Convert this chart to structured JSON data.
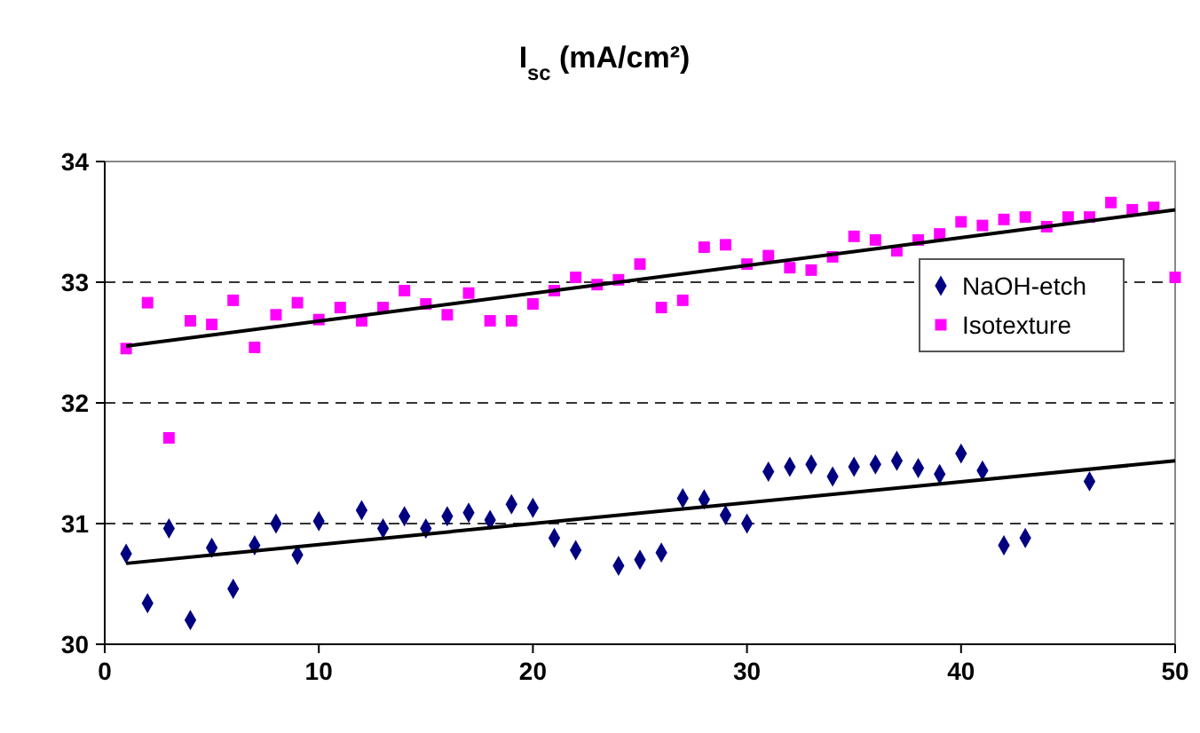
{
  "chart_data": {
    "type": "scatter",
    "title": "I$_{sc}$ (mA/cm²)",
    "xlim": [
      0,
      50
    ],
    "xticks": [
      0,
      10,
      20,
      30,
      40,
      50
    ],
    "ylim": [
      30,
      34
    ],
    "yticks": [
      30,
      31,
      32,
      33,
      34
    ],
    "grid": "y",
    "legend": "right",
    "series": [
      {
        "name": "NaOH-etch",
        "color": "#000080",
        "marker": "diamond",
        "x": [
          1,
          2,
          3,
          4,
          5,
          6,
          7,
          8,
          9,
          10,
          12,
          13,
          14,
          15,
          16,
          17,
          18,
          19,
          20,
          21,
          22,
          24,
          25,
          26,
          27,
          28,
          29,
          30,
          31,
          32,
          33,
          34,
          35,
          36,
          37,
          38,
          39,
          40,
          41,
          42,
          43,
          46
        ],
        "values": [
          30.75,
          30.34,
          30.96,
          30.2,
          30.8,
          30.46,
          30.82,
          31.0,
          30.74,
          31.02,
          31.11,
          30.96,
          31.06,
          30.96,
          31.06,
          31.09,
          31.03,
          31.16,
          31.13,
          30.88,
          30.78,
          30.65,
          30.7,
          30.76,
          31.21,
          31.2,
          31.07,
          31.0,
          31.43,
          31.47,
          31.49,
          31.39,
          31.47,
          31.49,
          31.52,
          31.46,
          31.41,
          31.58,
          31.44,
          30.82,
          30.88,
          31.35
        ]
      },
      {
        "name": "Isotexture",
        "color": "#ff00ff",
        "marker": "square",
        "x": [
          1,
          2,
          3,
          4,
          5,
          6,
          7,
          8,
          9,
          10,
          11,
          12,
          13,
          14,
          15,
          16,
          17,
          18,
          19,
          20,
          21,
          22,
          23,
          24,
          25,
          26,
          27,
          28,
          29,
          30,
          31,
          32,
          33,
          34,
          35,
          36,
          37,
          38,
          39,
          40,
          41,
          42,
          43,
          44,
          45,
          46,
          47,
          48,
          49,
          50
        ],
        "values": [
          32.45,
          32.83,
          31.71,
          32.68,
          32.65,
          32.85,
          32.46,
          32.73,
          32.83,
          32.69,
          32.79,
          32.68,
          32.79,
          32.93,
          32.82,
          32.73,
          32.91,
          32.68,
          32.68,
          32.82,
          32.93,
          33.04,
          32.98,
          33.02,
          33.15,
          32.79,
          32.85,
          33.29,
          33.31,
          33.15,
          33.22,
          33.12,
          33.1,
          33.21,
          33.38,
          33.35,
          33.26,
          33.35,
          33.4,
          33.5,
          33.47,
          33.52,
          33.54,
          33.46,
          33.54,
          33.54,
          33.66,
          33.6,
          33.62,
          33.04
        ]
      },
      {
        "type": "line",
        "color": "#000000",
        "x": [
          1,
          50
        ],
        "values": [
          30.67,
          31.52
        ]
      },
      {
        "type": "line",
        "color": "#000000",
        "x": [
          1,
          50
        ],
        "values": [
          32.47,
          33.6
        ]
      }
    ]
  }
}
